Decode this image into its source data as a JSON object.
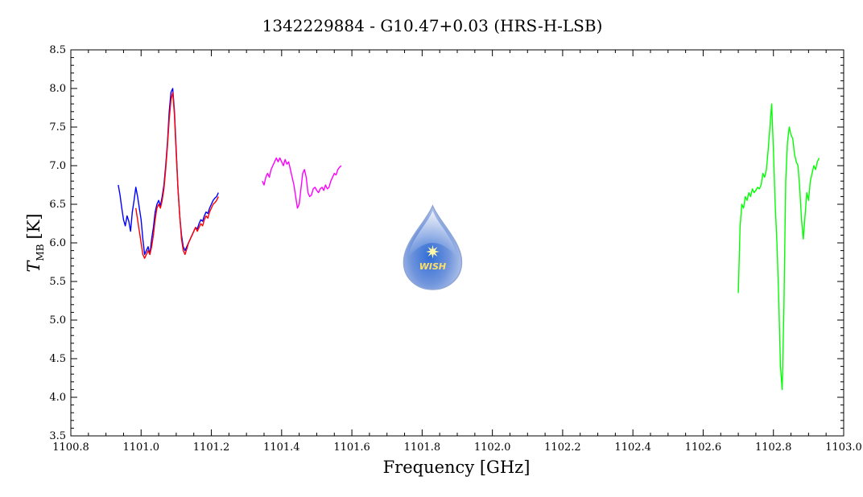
{
  "chart_data": {
    "type": "line",
    "title": "1342229884 - G10.47+0.03 (HRS-H-LSB)",
    "xlabel": "Frequency [GHz]",
    "ylabel_main": "T",
    "ylabel_sub": "MB",
    "ylabel_unit": "[K]",
    "xlim": [
      1100.8,
      1103.0
    ],
    "ylim": [
      3.5,
      8.5
    ],
    "xticks": [
      "1100.8",
      "1101.0",
      "1101.2",
      "1101.4",
      "1101.6",
      "1101.8",
      "1102.0",
      "1102.2",
      "1102.4",
      "1102.6",
      "1102.8",
      "1103.0"
    ],
    "yticks": [
      "3.5",
      "4.0",
      "4.5",
      "5.0",
      "5.5",
      "6.0",
      "6.5",
      "7.0",
      "7.5",
      "8.0",
      "8.5"
    ],
    "grid": false,
    "series": [
      {
        "color": "#0000ff",
        "x": [
          1100.935,
          1100.94,
          1100.945,
          1100.95,
          1100.955,
          1100.96,
          1100.965,
          1100.97,
          1100.975,
          1100.98,
          1100.985,
          1100.99,
          1100.995,
          1101.0,
          1101.005,
          1101.01,
          1101.015,
          1101.02,
          1101.025,
          1101.03,
          1101.035,
          1101.04,
          1101.045,
          1101.05,
          1101.055,
          1101.06,
          1101.065,
          1101.07,
          1101.075,
          1101.08,
          1101.085,
          1101.09,
          1101.095,
          1101.1,
          1101.105,
          1101.11,
          1101.115,
          1101.12,
          1101.125,
          1101.13,
          1101.135,
          1101.14,
          1101.145,
          1101.15,
          1101.155,
          1101.16,
          1101.165,
          1101.17,
          1101.175,
          1101.18,
          1101.185,
          1101.19,
          1101.195,
          1101.2,
          1101.205,
          1101.21,
          1101.215,
          1101.22
        ],
        "y": [
          6.75,
          6.62,
          6.45,
          6.3,
          6.22,
          6.35,
          6.28,
          6.15,
          6.4,
          6.55,
          6.72,
          6.6,
          6.45,
          6.3,
          6.05,
          5.85,
          5.9,
          5.95,
          5.85,
          6.05,
          6.2,
          6.4,
          6.5,
          6.55,
          6.48,
          6.6,
          6.75,
          7.0,
          7.3,
          7.7,
          7.95,
          8.0,
          7.7,
          7.2,
          6.7,
          6.35,
          6.1,
          5.95,
          5.9,
          5.95,
          6.0,
          6.05,
          6.1,
          6.15,
          6.2,
          6.18,
          6.25,
          6.3,
          6.28,
          6.35,
          6.4,
          6.38,
          6.45,
          6.5,
          6.55,
          6.58,
          6.6,
          6.65
        ]
      },
      {
        "color": "#ff0000",
        "x": [
          1100.985,
          1100.99,
          1100.995,
          1101.0,
          1101.005,
          1101.01,
          1101.015,
          1101.02,
          1101.025,
          1101.03,
          1101.035,
          1101.04,
          1101.045,
          1101.05,
          1101.055,
          1101.06,
          1101.065,
          1101.07,
          1101.075,
          1101.08,
          1101.085,
          1101.09,
          1101.095,
          1101.1,
          1101.105,
          1101.11,
          1101.115,
          1101.12,
          1101.125,
          1101.13,
          1101.135,
          1101.14,
          1101.145,
          1101.15,
          1101.155,
          1101.16,
          1101.165,
          1101.17,
          1101.175,
          1101.18,
          1101.185,
          1101.19,
          1101.195,
          1101.2,
          1101.205,
          1101.21,
          1101.215,
          1101.22
        ],
        "y": [
          6.45,
          6.3,
          6.15,
          6.0,
          5.85,
          5.8,
          5.85,
          5.9,
          5.85,
          5.95,
          6.1,
          6.3,
          6.45,
          6.5,
          6.45,
          6.55,
          6.7,
          6.95,
          7.25,
          7.6,
          7.85,
          7.95,
          7.65,
          7.15,
          6.7,
          6.35,
          6.05,
          5.9,
          5.85,
          5.92,
          6.0,
          6.05,
          6.1,
          6.15,
          6.2,
          6.15,
          6.2,
          6.25,
          6.22,
          6.3,
          6.35,
          6.32,
          6.4,
          6.45,
          6.5,
          6.52,
          6.55,
          6.6
        ]
      },
      {
        "color": "#ff00ff",
        "x": [
          1101.345,
          1101.35,
          1101.355,
          1101.36,
          1101.365,
          1101.37,
          1101.375,
          1101.38,
          1101.385,
          1101.39,
          1101.395,
          1101.4,
          1101.405,
          1101.41,
          1101.415,
          1101.42,
          1101.425,
          1101.43,
          1101.435,
          1101.44,
          1101.445,
          1101.45,
          1101.455,
          1101.46,
          1101.465,
          1101.47,
          1101.475,
          1101.48,
          1101.485,
          1101.49,
          1101.495,
          1101.5,
          1101.505,
          1101.51,
          1101.515,
          1101.52,
          1101.525,
          1101.53,
          1101.535,
          1101.54,
          1101.545,
          1101.55,
          1101.555,
          1101.56,
          1101.565,
          1101.57
        ],
        "y": [
          6.8,
          6.75,
          6.85,
          6.9,
          6.85,
          6.95,
          7.0,
          7.05,
          7.1,
          7.05,
          7.1,
          7.05,
          7.0,
          7.08,
          7.02,
          7.05,
          6.95,
          6.85,
          6.75,
          6.6,
          6.45,
          6.5,
          6.7,
          6.9,
          6.95,
          6.85,
          6.65,
          6.6,
          6.62,
          6.7,
          6.72,
          6.68,
          6.65,
          6.7,
          6.72,
          6.68,
          6.75,
          6.7,
          6.72,
          6.8,
          6.85,
          6.9,
          6.88,
          6.95,
          6.98,
          7.0
        ]
      },
      {
        "color": "#00ff00",
        "x": [
          1102.7,
          1102.705,
          1102.71,
          1102.715,
          1102.72,
          1102.725,
          1102.73,
          1102.735,
          1102.74,
          1102.745,
          1102.75,
          1102.755,
          1102.76,
          1102.765,
          1102.77,
          1102.775,
          1102.78,
          1102.785,
          1102.79,
          1102.795,
          1102.8,
          1102.805,
          1102.81,
          1102.815,
          1102.82,
          1102.825,
          1102.83,
          1102.835,
          1102.84,
          1102.845,
          1102.85,
          1102.855,
          1102.86,
          1102.865,
          1102.87,
          1102.875,
          1102.88,
          1102.885,
          1102.89,
          1102.895,
          1102.9,
          1102.905,
          1102.91,
          1102.915,
          1102.92,
          1102.925,
          1102.93
        ],
        "y": [
          5.35,
          6.2,
          6.5,
          6.45,
          6.6,
          6.55,
          6.65,
          6.6,
          6.7,
          6.65,
          6.68,
          6.72,
          6.7,
          6.75,
          6.9,
          6.85,
          6.95,
          7.2,
          7.5,
          7.8,
          7.2,
          6.5,
          6.0,
          5.3,
          4.4,
          4.1,
          5.2,
          6.8,
          7.3,
          7.5,
          7.4,
          7.35,
          7.15,
          7.05,
          7.0,
          6.7,
          6.3,
          6.05,
          6.35,
          6.65,
          6.55,
          6.8,
          6.9,
          7.0,
          6.95,
          7.05,
          7.1
        ]
      }
    ]
  },
  "logo": {
    "text": "WISH",
    "star": "✷",
    "icon": "water-drop-icon",
    "center_x_data": 1101.83
  }
}
